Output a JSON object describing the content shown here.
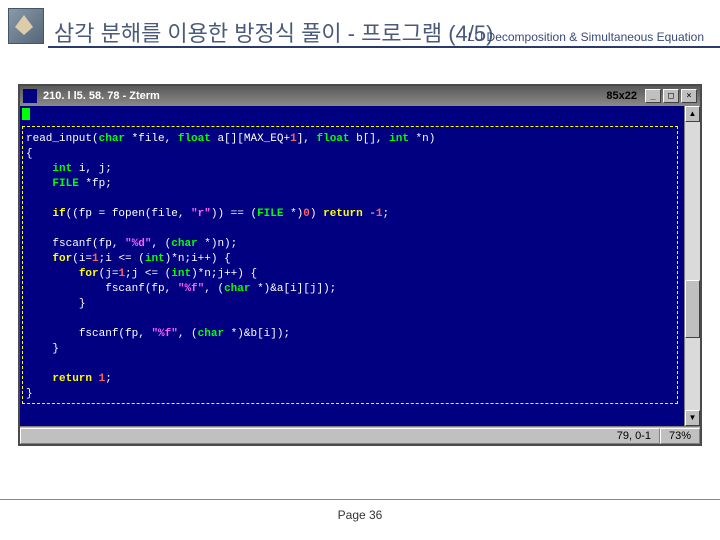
{
  "header": {
    "title": "삼각 분해를 이용한 방정식 풀이 - 프로그램 (4/5)",
    "subtitle": "LU Decomposition & Simultaneous Equation"
  },
  "window": {
    "title": "210. l l5. 58. 78 - Zterm",
    "size_label": "85x22",
    "buttons": {
      "min": "_",
      "max": "□",
      "close": "×"
    }
  },
  "code": {
    "l01a": "read_input(",
    "l01_ty1": "char",
    "l01b": " *file, ",
    "l01_ty2": "float",
    "l01c": " a[][MAX_EQ+",
    "l01_nu1": "1",
    "l01d": "], ",
    "l01_ty3": "float",
    "l01e": " b[], ",
    "l01_ty4": "int",
    "l01f": " *n)",
    "l02": "{",
    "l03_ind": "    ",
    "l03_ty": "int",
    "l03b": " i, j;",
    "l04_ind": "    ",
    "l04_ty": "FILE",
    "l04b": " *fp;",
    "l05": "",
    "l06_ind": "    ",
    "l06_kw1": "if",
    "l06a": "((fp = fopen(file, ",
    "l06_st": "\"r\"",
    "l06b": ")) == (",
    "l06_ty": "FILE",
    "l06c": " *)",
    "l06_nu1": "0",
    "l06d": ") ",
    "l06_kw2": "return",
    "l06e": " -",
    "l06_nu2": "1",
    "l06f": ";",
    "l07": "",
    "l08_ind": "    ",
    "l08a": "fscanf(fp, ",
    "l08_st": "\"%d\"",
    "l08b": ", (",
    "l08_ty": "char",
    "l08c": " *)n);",
    "l09_ind": "    ",
    "l09_kw": "for",
    "l09a": "(i=",
    "l09_nu1": "1",
    "l09b": ";i <= (",
    "l09_ty": "int",
    "l09c": ")*n;i++) {",
    "l10_ind": "        ",
    "l10_kw": "for",
    "l10a": "(j=",
    "l10_nu1": "1",
    "l10b": ";j <= (",
    "l10_ty": "int",
    "l10c": ")*n;j++) {",
    "l11_ind": "            ",
    "l11a": "fscanf(fp, ",
    "l11_st": "\"%f\"",
    "l11b": ", (",
    "l11_ty": "char",
    "l11c": " *)&a[i][j]);",
    "l12_ind": "        ",
    "l12": "}",
    "l13": "",
    "l14_ind": "        ",
    "l14a": "fscanf(fp, ",
    "l14_st": "\"%f\"",
    "l14b": ", (",
    "l14_ty": "char",
    "l14c": " *)&b[i]);",
    "l15_ind": "    ",
    "l15": "}",
    "l16": "",
    "l17_ind": "    ",
    "l17_kw": "return",
    "l17a": " ",
    "l17_nu": "1",
    "l17b": ";",
    "l18": "}"
  },
  "status": {
    "pos": "79, 0-1",
    "pct": "73%"
  },
  "footer": {
    "page": "Page 36"
  }
}
